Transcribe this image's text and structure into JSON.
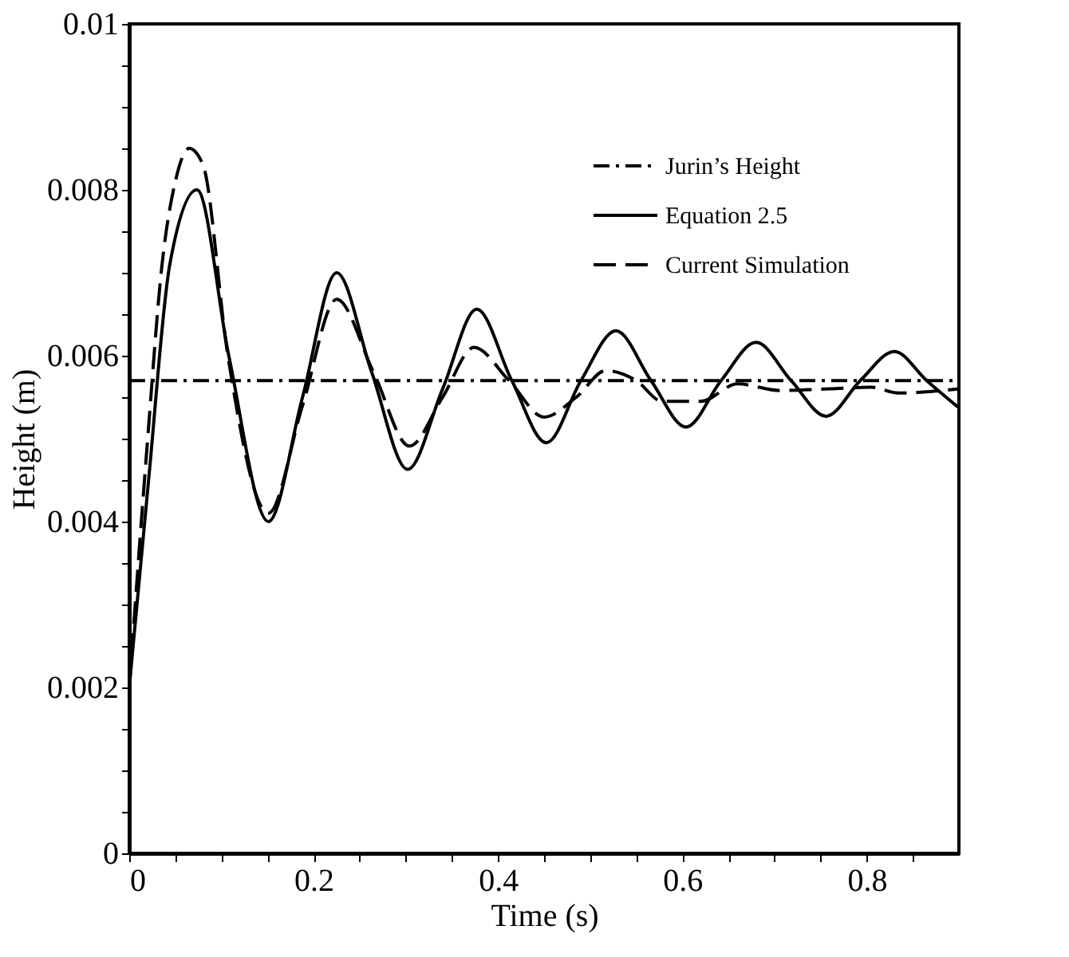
{
  "chart_data": {
    "type": "line",
    "xlabel": "Time (s)",
    "ylabel": "Height (m)",
    "xlim": [
      0,
      0.9
    ],
    "ylim": [
      0,
      0.01
    ],
    "xticks": [
      0,
      {
        "value": 0.05,
        "label": null
      },
      {
        "value": 0.1,
        "label": null
      },
      {
        "value": 0.15,
        "label": null
      },
      0.2,
      {
        "value": 0.25,
        "label": null
      },
      {
        "value": 0.3,
        "label": null
      },
      {
        "value": 0.35,
        "label": null
      },
      0.4,
      {
        "value": 0.45,
        "label": null
      },
      {
        "value": 0.5,
        "label": null
      },
      {
        "value": 0.55,
        "label": null
      },
      0.6,
      {
        "value": 0.65,
        "label": null
      },
      {
        "value": 0.7,
        "label": null
      },
      {
        "value": 0.75,
        "label": null
      },
      0.8,
      {
        "value": 0.85,
        "label": null
      }
    ],
    "yticks": [
      0,
      {
        "value": 0.0005,
        "label": null
      },
      {
        "value": 0.001,
        "label": null
      },
      {
        "value": 0.0015,
        "label": null
      },
      0.002,
      {
        "value": 0.0025,
        "label": null
      },
      {
        "value": 0.003,
        "label": null
      },
      {
        "value": 0.0035,
        "label": null
      },
      0.004,
      {
        "value": 0.0045,
        "label": null
      },
      {
        "value": 0.005,
        "label": null
      },
      {
        "value": 0.0055,
        "label": null
      },
      0.006,
      {
        "value": 0.0065,
        "label": null
      },
      {
        "value": 0.007,
        "label": null
      },
      {
        "value": 0.0075,
        "label": null
      },
      0.008,
      {
        "value": 0.0085,
        "label": null
      },
      {
        "value": 0.009,
        "label": null
      },
      {
        "value": 0.0095,
        "label": null
      },
      0.01
    ],
    "grid": false,
    "legend": "top right",
    "marker": "none",
    "series": [
      {
        "name": "Jurin’s Height",
        "color": "#000000",
        "line_style": "dashdot",
        "x": [
          0,
          0.9
        ],
        "values": [
          0.0057,
          0.0057
        ]
      },
      {
        "name": "Equation 2.5",
        "color": "#000000",
        "line_style": "solid",
        "x": [
          0,
          0.021,
          0.044,
          0.0735,
          0.108,
          0.151,
          0.188,
          0.225,
          0.263,
          0.302,
          0.34,
          0.377,
          0.415,
          0.4525,
          0.49,
          0.528,
          0.566,
          0.604,
          0.642,
          0.68,
          0.718,
          0.756,
          0.793,
          0.83,
          0.865,
          0.899
        ],
        "values": [
          0.002,
          0.0045,
          0.0071,
          0.008,
          0.006,
          0.004,
          0.0055,
          0.007,
          0.0058,
          0.00463,
          0.0056,
          0.00656,
          0.0057,
          0.00495,
          0.0057,
          0.0063,
          0.0057,
          0.00514,
          0.0057,
          0.00616,
          0.0057,
          0.00527,
          0.0057,
          0.00605,
          0.0057,
          0.00538
        ]
      },
      {
        "name": "Current Simulation",
        "color": "#000000",
        "line_style": "dashed",
        "x": [
          0,
          0.02,
          0.0356,
          0.05,
          0.065,
          0.08,
          0.107,
          0.151,
          0.188,
          0.225,
          0.265,
          0.304,
          0.34,
          0.374,
          0.412,
          0.45,
          0.485,
          0.517,
          0.55,
          0.578,
          0.62,
          0.66,
          0.706,
          0.76,
          0.805,
          0.834,
          0.899
        ],
        "values": [
          0.002,
          0.005,
          0.0071,
          0.0081,
          0.0085,
          0.0083,
          0.006,
          0.0041,
          0.0054,
          0.00668,
          0.0058,
          0.00491,
          0.0055,
          0.0061,
          0.0057,
          0.00526,
          0.0055,
          0.00582,
          0.0057,
          0.00545,
          0.00545,
          0.00566,
          0.00558,
          0.0056,
          0.00562,
          0.00555,
          0.0056
        ]
      }
    ]
  }
}
